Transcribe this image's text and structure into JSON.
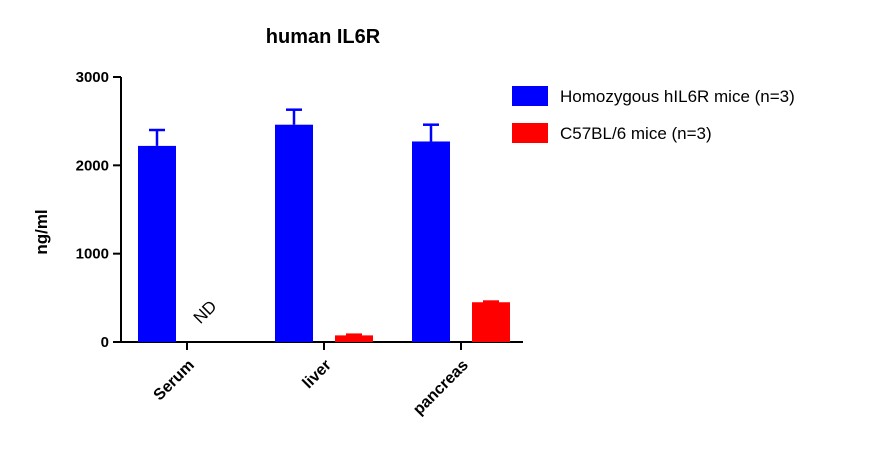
{
  "chart_data": {
    "type": "bar",
    "title": "human IL6R",
    "xlabel": "",
    "ylabel": "ng/ml",
    "ylim": [
      0,
      3000
    ],
    "yticks": [
      0,
      1000,
      2000,
      3000
    ],
    "categories": [
      "Serum",
      "liver",
      "pancreas"
    ],
    "series": [
      {
        "name": "Homozygous hIL6R mice (n=3)",
        "color": "#0000ff",
        "values": [
          2220,
          2460,
          2270
        ],
        "errors": [
          180,
          170,
          190
        ]
      },
      {
        "name": "C57BL/6 mice (n=3)",
        "color": "#ff0000",
        "values": [
          null,
          75,
          450
        ],
        "errors": [
          0,
          8,
          8
        ]
      }
    ],
    "annotations": [
      {
        "category": "Serum",
        "series": 1,
        "text": "ND"
      }
    ],
    "legend_position": "top-right",
    "grid": false
  }
}
